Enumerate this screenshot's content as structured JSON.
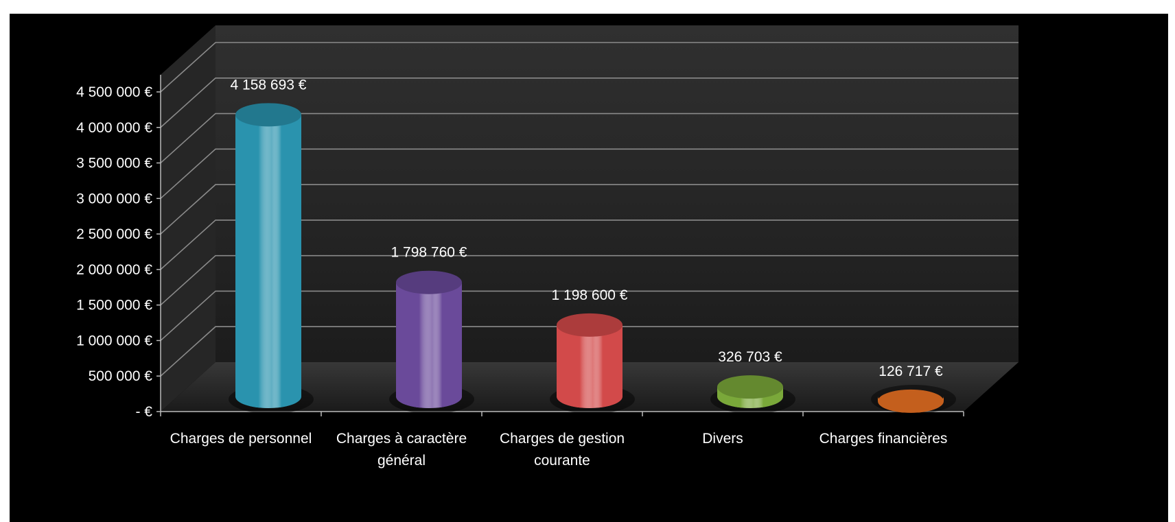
{
  "chart_data": {
    "type": "bar",
    "style": "3d-cylinder",
    "title": "",
    "xlabel": "",
    "ylabel": "",
    "ylim": [
      0,
      4500000
    ],
    "ytick_step": 500000,
    "ytick_labels": [
      "- €",
      "500 000 €",
      "1 000 000 €",
      "1 500 000 €",
      "2 000 000 €",
      "2 500 000 €",
      "3 000 000 €",
      "3 500 000 €",
      "4 000 000 €",
      "4 500 000 €"
    ],
    "grid": true,
    "legend": "none",
    "background_color": "#000000",
    "categories": [
      [
        "Charges de personnel"
      ],
      [
        "Charges à caractère",
        "général"
      ],
      [
        "Charges de gestion",
        "courante"
      ],
      [
        "Divers"
      ],
      [
        "Charges financières"
      ]
    ],
    "values": [
      4158693,
      1798760,
      1198600,
      326703,
      126717
    ],
    "data_labels": [
      "4 158 693 €",
      "1 798 760 €",
      "1 198 600 €",
      "326 703 €",
      "126 717 €"
    ],
    "colors": [
      "#2a93ae",
      "#6a4a9a",
      "#d24a4a",
      "#7aa83a",
      "#f07424"
    ]
  }
}
